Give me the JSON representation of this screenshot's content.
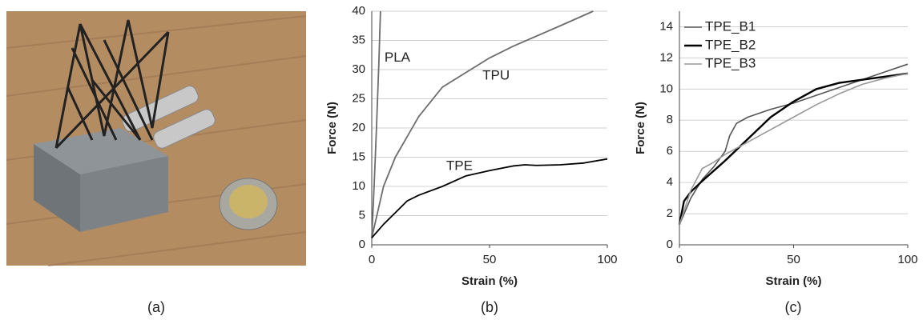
{
  "captions": [
    "(a)",
    "(b)",
    "(c)"
  ],
  "chart_data": [
    {
      "type": "line",
      "xlabel": "Strain (%)",
      "ylabel": "Force (N)",
      "xlim": [
        0,
        100
      ],
      "xticks": [
        0,
        50,
        100
      ],
      "ylim": [
        0,
        40
      ],
      "yticks": [
        0,
        5,
        10,
        15,
        20,
        25,
        30,
        35,
        40
      ],
      "grid": true,
      "labels": "inline",
      "series": [
        {
          "name": "PLA",
          "color": "#6d6d6d",
          "line_width": 1.8,
          "x": [
            0,
            1,
            2,
            3,
            3.7
          ],
          "values": [
            1.2,
            10,
            20,
            31,
            40
          ]
        },
        {
          "name": "TPU",
          "color": "#6d6d6d",
          "line_width": 1.8,
          "x": [
            0,
            5,
            10,
            20,
            30,
            40,
            50,
            60,
            80,
            94
          ],
          "values": [
            1.2,
            10,
            15,
            22,
            27,
            29.5,
            32,
            34,
            37.5,
            40
          ]
        },
        {
          "name": "TPE",
          "color": "#000000",
          "line_width": 1.8,
          "x": [
            0,
            5,
            10,
            15,
            20,
            30,
            40,
            50,
            60,
            65,
            70,
            80,
            90,
            100
          ],
          "values": [
            1.2,
            3.5,
            5.5,
            7.5,
            8.5,
            10,
            11.8,
            12.7,
            13.5,
            13.7,
            13.6,
            13.7,
            14,
            14.7
          ]
        }
      ]
    },
    {
      "type": "line",
      "xlabel": "Strain (%)",
      "ylabel": "Force (N)",
      "xlim": [
        0,
        100
      ],
      "xticks": [
        0,
        50,
        100
      ],
      "ylim": [
        0,
        15
      ],
      "yticks": [
        0,
        2,
        4,
        6,
        8,
        10,
        12,
        14
      ],
      "grid": true,
      "legend": "upper left",
      "series": [
        {
          "name": "TPE_B1",
          "color": "#555555",
          "line_width": 1.6,
          "x": [
            0,
            5,
            10,
            15,
            20,
            22,
            25,
            30,
            40,
            50,
            60,
            70,
            80,
            90,
            100
          ],
          "values": [
            1.3,
            3,
            4.2,
            5,
            6,
            7,
            7.8,
            8.2,
            8.7,
            9.1,
            9.6,
            10.1,
            10.6,
            11.1,
            11.6
          ]
        },
        {
          "name": "TPE_B2",
          "color": "#000000",
          "line_width": 2.4,
          "x": [
            0,
            2,
            5,
            10,
            20,
            30,
            40,
            50,
            60,
            70,
            80,
            90,
            100
          ],
          "values": [
            1.3,
            2.8,
            3.4,
            4.1,
            5.4,
            6.8,
            8.2,
            9.2,
            10,
            10.4,
            10.6,
            10.8,
            11
          ]
        },
        {
          "name": "TPE_B3",
          "color": "#999999",
          "line_width": 1.6,
          "x": [
            0,
            5,
            10,
            15,
            20,
            30,
            40,
            50,
            60,
            70,
            80,
            90,
            100
          ],
          "values": [
            1.3,
            3.5,
            4.9,
            5.3,
            5.8,
            6.6,
            7.4,
            8.2,
            9,
            9.7,
            10.3,
            10.7,
            11
          ]
        }
      ]
    }
  ]
}
